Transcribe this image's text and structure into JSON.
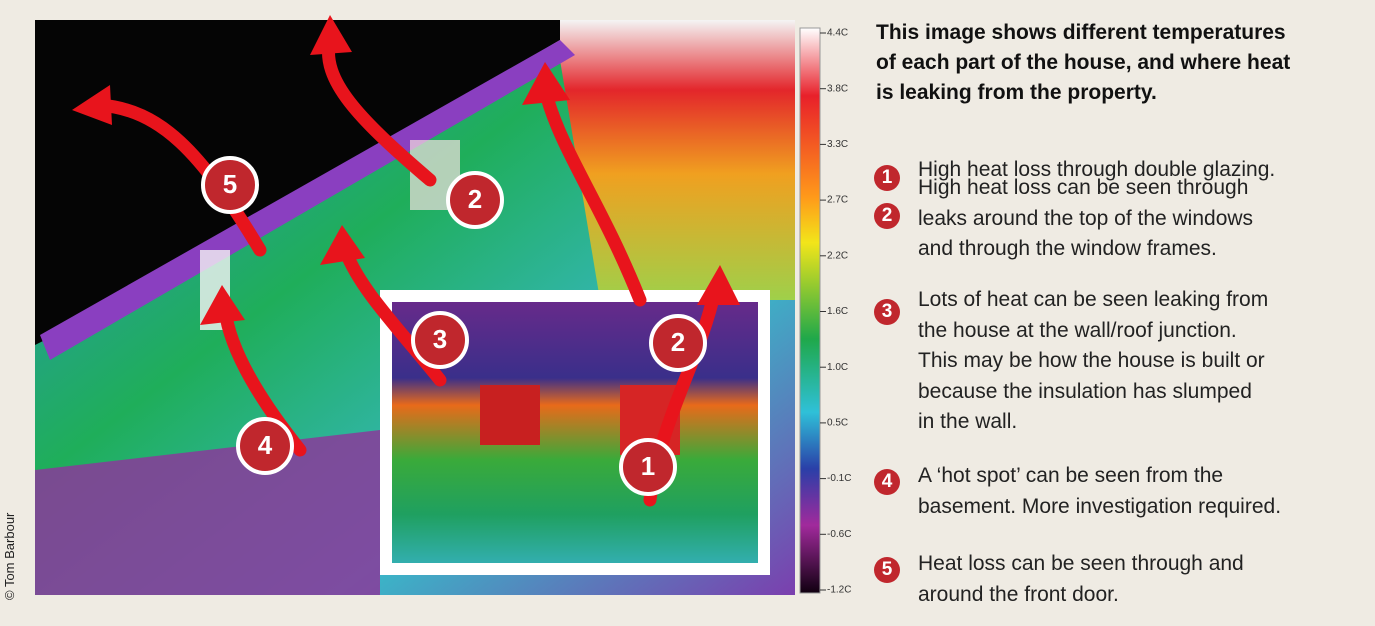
{
  "credit": "© Tom Barbour",
  "scale": {
    "labels": [
      "4.4C",
      "3.8C",
      "3.3C",
      "2.7C",
      "2.2C",
      "1.6C",
      "1.0C",
      "0.5C",
      "-0.1C",
      "-0.6C",
      "-1.2C"
    ]
  },
  "image": {
    "markers": [
      "5",
      "2",
      "3",
      "2",
      "4",
      "1"
    ]
  },
  "intro": {
    "lines": [
      "This image shows different temperatures",
      "of each part of the house, and where heat",
      "is leaking from the property."
    ]
  },
  "items": [
    {
      "number": "1",
      "lines": [
        "High heat loss through double glazing."
      ]
    },
    {
      "number": "2",
      "lines": [
        "High heat loss can be seen through",
        "leaks around the top of the windows",
        "and through the window frames."
      ]
    },
    {
      "number": "3",
      "lines": [
        "Lots of heat can be seen leaking from",
        "the house at the wall/roof junction.",
        "This may be how the house is built or",
        "because the insulation has slumped",
        "in the wall."
      ]
    },
    {
      "number": "4",
      "lines": [
        "A ‘hot spot’ can be seen from the",
        "basement. More investigation required."
      ]
    },
    {
      "number": "5",
      "lines": [
        "Heat loss can be seen  through and",
        "around the front door."
      ]
    }
  ]
}
